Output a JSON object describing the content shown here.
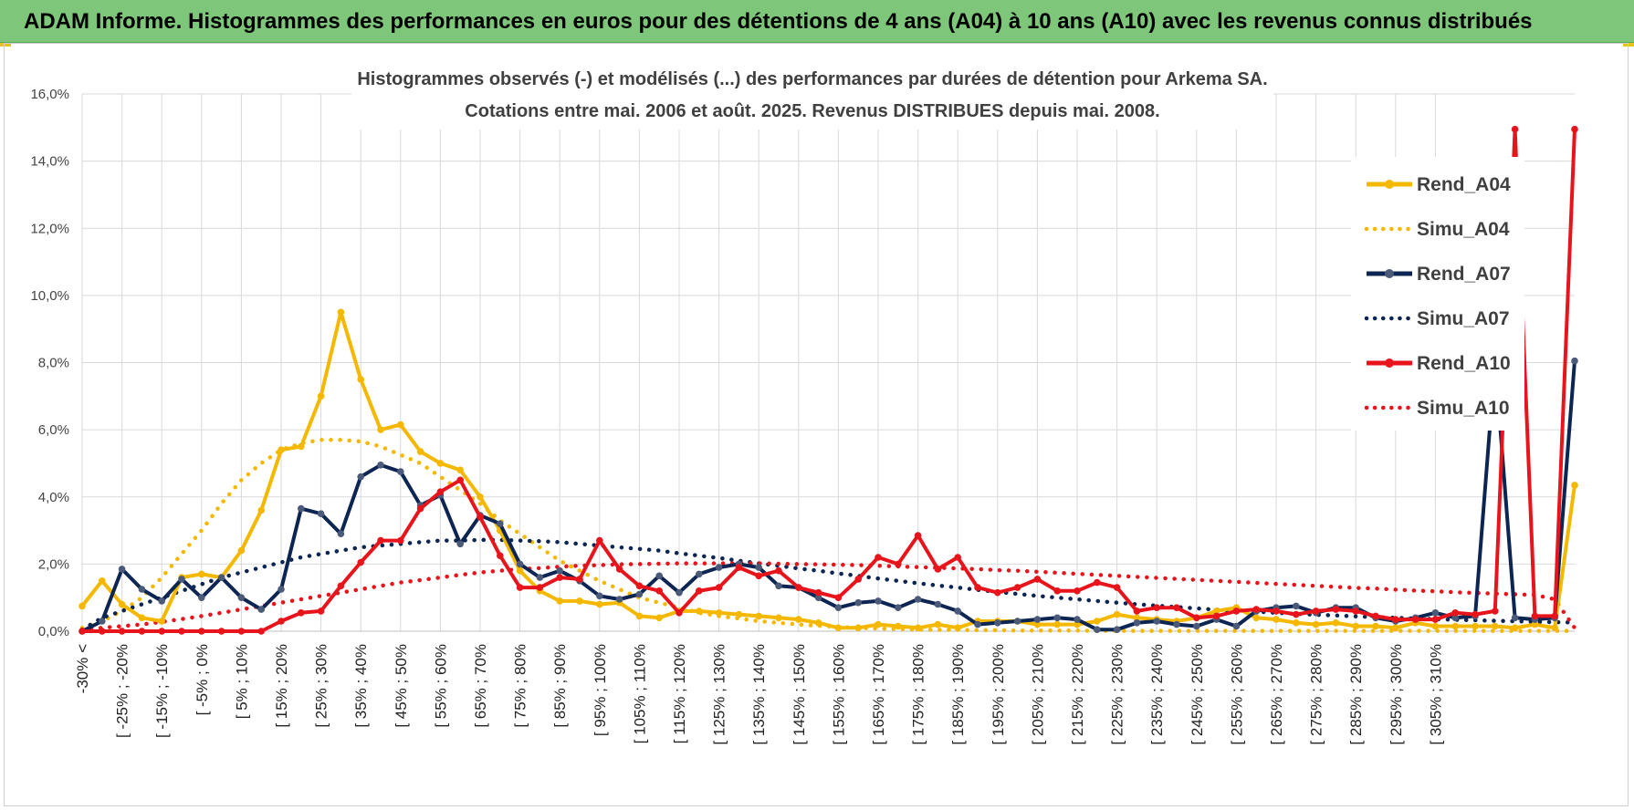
{
  "banner": {
    "title": "ADAM Informe. Histogrammes des performances en euros pour des détentions de 4 ans (A04) à 10 ans (A10) avec les revenus connus distribués"
  },
  "colors": {
    "banner_bg": "#7dc67a",
    "A04": "#f5b800",
    "A07": "#0d2552",
    "A07_marker": "#4a5a78",
    "A10": "#e8141c"
  },
  "chart_data": {
    "type": "line",
    "title": [
      "Histogrammes observés (-) et modélisés (...) des performances par durées de détention pour Arkema SA.",
      "Cotations entre mai. 2006 et août. 2025.  Revenus DISTRIBUES depuis mai. 2008."
    ],
    "xlabel": "",
    "ylabel": "",
    "ylim": [
      0,
      16
    ],
    "y_ticks": [
      "0,0%",
      "2,0%",
      "4,0%",
      "6,0%",
      "8,0%",
      "10,0%",
      "12,0%",
      "14,0%",
      "16,0%"
    ],
    "grid": true,
    "legend_position": "top-right",
    "x_labels": [
      "-30% <",
      "[ -25% ; -20%",
      "[ -15% ; -10%",
      "[ -5% ; 0%",
      "[ 5% ; 10%",
      "[ 15% ; 20%",
      "[ 25% ; 30%",
      "[ 35% ; 40%",
      "[ 45% ; 50%",
      "[ 55% ; 60%",
      "[ 65% ; 70%",
      "[ 75% ; 80%",
      "[ 85% ; 90%",
      "[ 95% ; 100%",
      "[ 105% ; 110%",
      "[ 115% ; 120%",
      "[ 125% ; 130%",
      "[ 135% ; 140%",
      "[ 145% ; 150%",
      "[ 155% ; 160%",
      "[ 165% ; 170%",
      "[ 175% ; 180%",
      "[ 185% ; 190%",
      "[ 195% ; 200%",
      "[ 205% ; 210%",
      "[ 215% ; 220%",
      "[ 225% ; 230%",
      "[ 235% ; 240%",
      "[ 245% ; 250%",
      "[ 255% ; 260%",
      "[ 265% ; 270%",
      "[ 275% ; 280%",
      "[ 285% ; 290%",
      "[ 295% ; 300%",
      "[ 305% ; 310%"
    ],
    "series": [
      {
        "name": "Rend_A04",
        "style": "solid",
        "color": "#f5b800",
        "values": [
          0.75,
          1.5,
          0.8,
          0.4,
          0.3,
          1.6,
          1.7,
          1.6,
          2.4,
          3.6,
          5.4,
          5.5,
          7.0,
          9.5,
          7.5,
          6.0,
          6.15,
          5.35,
          5.0,
          4.8,
          4.0,
          3.0,
          1.8,
          1.2,
          0.9,
          0.9,
          0.8,
          0.85,
          0.45,
          0.4,
          0.6,
          0.6,
          0.55,
          0.5,
          0.45,
          0.4,
          0.35,
          0.25,
          0.1,
          0.1,
          0.2,
          0.15,
          0.1,
          0.2,
          0.1,
          0.3,
          0.3,
          0.3,
          0.2,
          0.2,
          0.2,
          0.3,
          0.5,
          0.4,
          0.35,
          0.3,
          0.4,
          0.6,
          0.7,
          0.4,
          0.35,
          0.25,
          0.2,
          0.25,
          0.15,
          0.15,
          0.1,
          0.25,
          0.15,
          0.15,
          0.15,
          0.15,
          0.1,
          0.2,
          0.1,
          4.35
        ]
      },
      {
        "name": "Simu_A04",
        "style": "dotted",
        "color": "#f5b800",
        "values": [
          0.1,
          0.3,
          0.6,
          1.0,
          1.6,
          2.3,
          3.0,
          3.8,
          4.5,
          5.0,
          5.4,
          5.6,
          5.7,
          5.7,
          5.65,
          5.5,
          5.25,
          5.0,
          4.6,
          4.2,
          3.8,
          3.3,
          2.9,
          2.5,
          2.1,
          1.8,
          1.5,
          1.25,
          1.0,
          0.85,
          0.7,
          0.55,
          0.45,
          0.38,
          0.3,
          0.25,
          0.2,
          0.16,
          0.13,
          0.1,
          0.08,
          0.07,
          0.05,
          0.04,
          0.04,
          0.03,
          0.03,
          0.02,
          0.02,
          0.02,
          0.02,
          0.01,
          0.01,
          0.01,
          0.01,
          0.01,
          0.01,
          0.01,
          0.01,
          0.01,
          0.01,
          0.01,
          0.01,
          0.01,
          0.01,
          0.01,
          0.01,
          0.01,
          0.01,
          0.01,
          0.01,
          0.01,
          0.01,
          0.01,
          0.01,
          0.01
        ]
      },
      {
        "name": "Rend_A07",
        "style": "solid",
        "color": "#0d2552",
        "values": [
          0.0,
          0.3,
          1.85,
          1.25,
          0.9,
          1.55,
          1.0,
          1.6,
          1.0,
          0.65,
          1.25,
          3.65,
          3.5,
          2.9,
          4.6,
          4.95,
          4.75,
          3.75,
          4.05,
          2.6,
          3.45,
          3.2,
          2.0,
          1.6,
          1.8,
          1.5,
          1.05,
          0.95,
          1.1,
          1.65,
          1.15,
          1.7,
          1.9,
          2.0,
          1.9,
          1.35,
          1.3,
          1.0,
          0.7,
          0.85,
          0.9,
          0.7,
          0.95,
          0.8,
          0.6,
          0.2,
          0.25,
          0.3,
          0.35,
          0.4,
          0.35,
          0.05,
          0.05,
          0.25,
          0.3,
          0.2,
          0.15,
          0.35,
          0.15,
          0.6,
          0.7,
          0.75,
          0.55,
          0.7,
          0.7,
          0.4,
          0.3,
          0.4,
          0.55,
          0.4,
          0.45,
          8.05,
          0.4,
          0.35,
          0.4,
          8.05
        ]
      },
      {
        "name": "Simu_A07",
        "style": "dotted",
        "color": "#0d2552",
        "values": [
          0.05,
          0.4,
          0.6,
          0.8,
          1.0,
          1.2,
          1.4,
          1.6,
          1.75,
          1.9,
          2.05,
          2.2,
          2.3,
          2.4,
          2.5,
          2.55,
          2.6,
          2.65,
          2.7,
          2.7,
          2.72,
          2.72,
          2.7,
          2.68,
          2.65,
          2.6,
          2.55,
          2.5,
          2.45,
          2.4,
          2.32,
          2.25,
          2.18,
          2.1,
          2.02,
          1.95,
          1.87,
          1.8,
          1.72,
          1.65,
          1.57,
          1.5,
          1.43,
          1.36,
          1.3,
          1.23,
          1.17,
          1.11,
          1.05,
          1.0,
          0.95,
          0.9,
          0.85,
          0.8,
          0.76,
          0.72,
          0.68,
          0.64,
          0.61,
          0.58,
          0.55,
          0.52,
          0.49,
          0.47,
          0.44,
          0.42,
          0.4,
          0.38,
          0.36,
          0.34,
          0.33,
          0.31,
          0.3,
          0.28,
          0.27,
          0.26
        ]
      },
      {
        "name": "Rend_A10",
        "style": "solid",
        "color": "#e8141c",
        "values": [
          0.0,
          0.0,
          0.0,
          0.0,
          0.0,
          0.0,
          0.0,
          0.0,
          0.0,
          0.0,
          0.3,
          0.55,
          0.6,
          1.35,
          2.05,
          2.7,
          2.7,
          3.65,
          4.15,
          4.5,
          3.4,
          2.25,
          1.3,
          1.3,
          1.6,
          1.55,
          2.7,
          1.85,
          1.35,
          1.2,
          0.55,
          1.2,
          1.3,
          1.9,
          1.65,
          1.8,
          1.3,
          1.15,
          1.0,
          1.55,
          2.2,
          2.0,
          2.85,
          1.85,
          2.2,
          1.3,
          1.15,
          1.3,
          1.55,
          1.2,
          1.2,
          1.45,
          1.3,
          0.6,
          0.7,
          0.7,
          0.4,
          0.45,
          0.6,
          0.65,
          0.6,
          0.5,
          0.6,
          0.65,
          0.6,
          0.45,
          0.35,
          0.35,
          0.35,
          0.55,
          0.5,
          0.6,
          14.95,
          0.45,
          0.45,
          14.95
        ]
      },
      {
        "name": "Simu_A10",
        "style": "dotted",
        "color": "#e8141c",
        "values": [
          0.05,
          0.1,
          0.15,
          0.2,
          0.28,
          0.36,
          0.45,
          0.55,
          0.65,
          0.75,
          0.85,
          0.95,
          1.05,
          1.15,
          1.25,
          1.35,
          1.45,
          1.52,
          1.6,
          1.68,
          1.75,
          1.8,
          1.85,
          1.88,
          1.92,
          1.95,
          1.97,
          1.99,
          2.0,
          2.01,
          2.02,
          2.02,
          2.02,
          2.02,
          2.02,
          2.01,
          2.0,
          1.99,
          1.98,
          1.97,
          1.95,
          1.93,
          1.91,
          1.89,
          1.87,
          1.85,
          1.82,
          1.8,
          1.77,
          1.74,
          1.71,
          1.68,
          1.65,
          1.62,
          1.59,
          1.56,
          1.53,
          1.5,
          1.47,
          1.44,
          1.41,
          1.38,
          1.35,
          1.32,
          1.29,
          1.27,
          1.24,
          1.21,
          1.19,
          1.16,
          1.14,
          1.12,
          1.1,
          1.08,
          0.95,
          0.1
        ]
      }
    ]
  }
}
